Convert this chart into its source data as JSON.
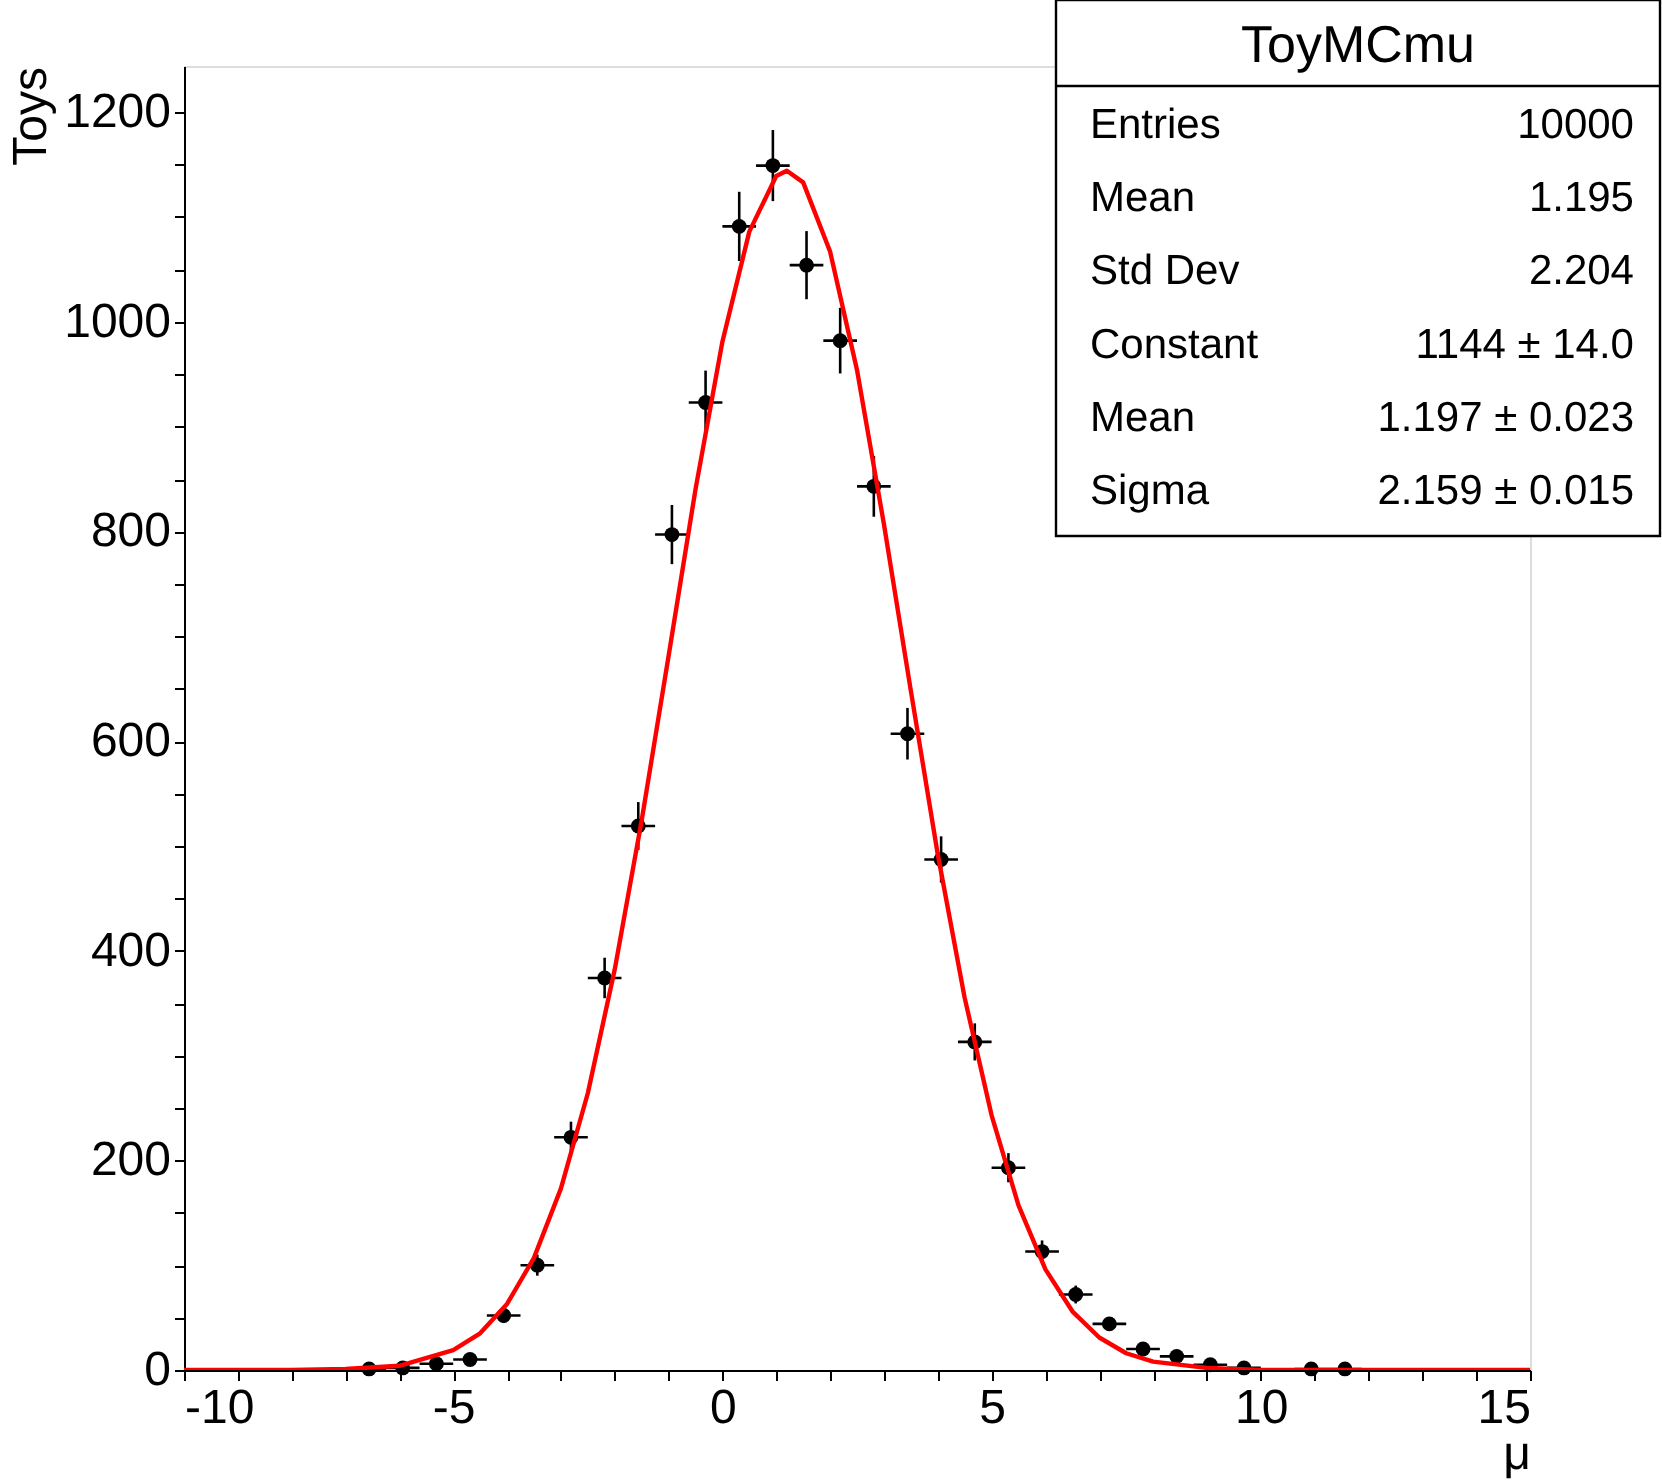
{
  "chart_data": {
    "type": "scatter",
    "title": "ToyMCmu",
    "xlabel": "μ",
    "ylabel": "Toys",
    "annotations": [
      "Entries",
      "10000",
      "Mean",
      "1.195",
      "Std Dev",
      "2.204",
      "Constant",
      "1144 ± 14.0",
      "Mean",
      "1.197 ± 0.023",
      "Sigma",
      "2.159 ± 0.015"
    ],
    "xlim": [
      -10,
      15
    ],
    "ylim": [
      0,
      1244
    ],
    "xticks": [
      -10,
      {
        "value": -9,
        "label": null
      },
      {
        "value": -8,
        "label": null
      },
      {
        "value": -7,
        "label": null
      },
      {
        "value": -6,
        "label": null
      },
      -5,
      {
        "value": -4,
        "label": null
      },
      {
        "value": -3,
        "label": null
      },
      {
        "value": -2,
        "label": null
      },
      {
        "value": -1,
        "label": null
      },
      0,
      {
        "value": 1,
        "label": null
      },
      {
        "value": 2,
        "label": null
      },
      {
        "value": 3,
        "label": null
      },
      {
        "value": 4,
        "label": null
      },
      5,
      {
        "value": 6,
        "label": null
      },
      {
        "value": 7,
        "label": null
      },
      {
        "value": 8,
        "label": null
      },
      {
        "value": 9,
        "label": null
      },
      10,
      {
        "value": 11,
        "label": null
      },
      {
        "value": 12,
        "label": null
      },
      {
        "value": 13,
        "label": null
      },
      {
        "value": 14,
        "label": null
      },
      15
    ],
    "yticks": [
      0,
      {
        "value": 50,
        "label": null
      },
      {
        "value": 100,
        "label": null
      },
      {
        "value": 150,
        "label": null
      },
      200,
      {
        "value": 250,
        "label": null
      },
      {
        "value": 300,
        "label": null
      },
      {
        "value": 350,
        "label": null
      },
      400,
      {
        "value": 450,
        "label": null
      },
      {
        "value": 500,
        "label": null
      },
      {
        "value": 550,
        "label": null
      },
      600,
      {
        "value": 650,
        "label": null
      },
      {
        "value": 700,
        "label": null
      },
      {
        "value": 750,
        "label": null
      },
      800,
      {
        "value": 850,
        "label": null
      },
      {
        "value": 900,
        "label": null
      },
      {
        "value": 950,
        "label": null
      },
      1000,
      {
        "value": 1050,
        "label": null
      },
      {
        "value": 1100,
        "label": null
      },
      {
        "value": 1150,
        "label": null
      },
      1200
    ],
    "grid": false,
    "marker": "circle",
    "series": [
      {
        "color": "#000000",
        "x": [
          -6.5625,
          -5.9375,
          -5.3125,
          -4.6875,
          -4.0625,
          -3.4375,
          -2.8125,
          -2.1875,
          -1.5625,
          -0.9375,
          -0.3125,
          0.3125,
          0.9375,
          1.5625,
          2.1875,
          2.8125,
          3.4375,
          4.0625,
          4.6875,
          5.3125,
          5.9375,
          6.5625,
          7.1875,
          7.8125,
          8.4375,
          9.0625,
          9.6875,
          10.9375,
          11.5625
        ],
        "values": [
          1,
          2,
          6,
          10,
          52,
          100,
          222,
          374,
          519,
          797,
          923,
          1091,
          1149,
          1054,
          982,
          843,
          607,
          487,
          313,
          193,
          113,
          72,
          44,
          20,
          13,
          5,
          2,
          1,
          1
        ],
        "errors": [
          1,
          1.4,
          2.4,
          3.2,
          7.2,
          10,
          14.9,
          19.3,
          22.8,
          28.2,
          30.4,
          33,
          33.9,
          32.5,
          31.3,
          29,
          24.6,
          22.1,
          17.7,
          13.9,
          10.6,
          8.5,
          6.6,
          4.5,
          3.6,
          2.2,
          1.4,
          1,
          1
        ],
        "xerrors": [
          0.3125,
          0.3125,
          0.3125,
          0.3125,
          0.3125,
          0.3125,
          0.3125,
          0.3125,
          0.3125,
          0.3125,
          0.3125,
          0.3125,
          0.3125,
          0.3125,
          0.3125,
          0.3125,
          0.3125,
          0.3125,
          0.3125,
          0.3125,
          0.3125,
          0.3125,
          0.3125,
          0.3125,
          0.3125,
          0.3125,
          0.3125,
          0.3125,
          0.3125
        ]
      },
      {
        "type": "line",
        "color": "#ff0000",
        "line_style": "solid",
        "marker": "none",
        "x": [
          -10,
          -8,
          -7,
          -6,
          -5,
          -4.5,
          -4,
          -3.5,
          -3,
          -2.5,
          -2,
          -1.5,
          -1,
          -0.5,
          0,
          0.5,
          1,
          1.197,
          1.5,
          2,
          2.5,
          3,
          3.5,
          4,
          4.5,
          5,
          5.5,
          6,
          6.5,
          7,
          7.5,
          8,
          9,
          10,
          15
        ],
        "values": [
          0,
          0,
          1,
          4,
          19,
          35,
          63,
          107,
          173,
          264,
          382,
          524,
          681,
          840,
          981,
          1086,
          1139,
          1144,
          1133,
          1067,
          954,
          807,
          648,
          492,
          355,
          243,
          157,
          96,
          56,
          31,
          16,
          8,
          2,
          0,
          0
        ]
      }
    ]
  }
}
